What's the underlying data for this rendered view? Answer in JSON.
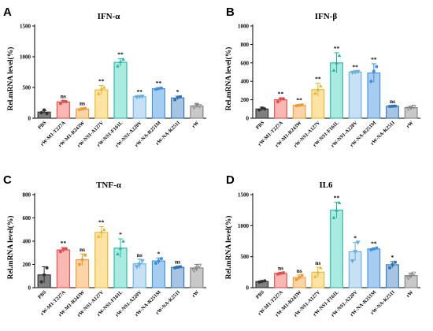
{
  "chart_data": [
    {
      "type": "bar",
      "panel_label": "A",
      "title": "IFN-α",
      "ylabel": "Rel.mRNA level(%)",
      "ylim": [
        0,
        1500
      ],
      "yticks": [
        0,
        500,
        1000,
        1500
      ],
      "categories": [
        "PBS",
        "rW-M1-T227A",
        "rW-M1-R243W",
        "rW-NS1-A127V",
        "rW-NS1-F161L",
        "rW-NS1-A220V",
        "rW-NA-R251M",
        "rW-NA-K251I",
        "rW"
      ],
      "values": [
        100,
        265,
        150,
        460,
        910,
        350,
        480,
        330,
        200
      ],
      "errors": [
        25,
        25,
        20,
        70,
        60,
        10,
        20,
        30,
        30
      ],
      "significance": [
        "",
        "ns",
        "ns",
        "**",
        "**",
        "**",
        "**",
        "*",
        ""
      ],
      "points": [
        [
          90,
          135,
          75
        ],
        [
          240,
          275,
          270
        ],
        [
          140,
          150,
          160
        ],
        [
          400,
          480,
          500
        ],
        [
          850,
          920,
          960
        ],
        [
          345,
          350,
          355
        ],
        [
          470,
          480,
          490
        ],
        [
          300,
          340,
          350
        ],
        [
          180,
          220,
          200
        ]
      ]
    },
    {
      "type": "bar",
      "panel_label": "B",
      "title": "IFN-β",
      "ylabel": "Rel.mRNA level(%)",
      "ylim": [
        0,
        1000
      ],
      "yticks": [
        0,
        200,
        400,
        600,
        800,
        1000
      ],
      "categories": [
        "PBS",
        "rW-M1-T227A",
        "rW-M1-R243W",
        "rW-NS1-A127V",
        "rW-NS1-F161L",
        "rW-NS1-A220V",
        "rW-NA-R251M",
        "rW-NA-K251I",
        "rW"
      ],
      "values": [
        100,
        200,
        140,
        310,
        600,
        500,
        490,
        130,
        115
      ],
      "errors": [
        20,
        20,
        10,
        70,
        110,
        10,
        100,
        5,
        15
      ],
      "significance": [
        "",
        "**",
        "**",
        "**",
        "**",
        "**",
        "**",
        "ns",
        ""
      ],
      "points": [
        [
          90,
          110,
          100
        ],
        [
          180,
          210,
          210
        ],
        [
          135,
          140,
          145
        ],
        [
          270,
          310,
          350
        ],
        [
          520,
          600,
          680
        ],
        [
          495,
          500,
          505
        ],
        [
          400,
          510,
          560
        ],
        [
          128,
          130,
          132
        ],
        [
          105,
          115,
          125
        ]
      ]
    },
    {
      "type": "bar",
      "panel_label": "C",
      "title": "TNF-α",
      "ylabel": "Rel.mRNA level(%)",
      "ylim": [
        0,
        800
      ],
      "yticks": [
        0,
        200,
        400,
        600,
        800
      ],
      "categories": [
        "PBS",
        "rW-M1-T227A",
        "rW-M1-R243W",
        "rW-NS1-A127V",
        "rW-NS1-F161L",
        "rW-NS1-A220V",
        "rW-NA-R251M",
        "rW-NA-K251I",
        "rW"
      ],
      "values": [
        110,
        325,
        240,
        475,
        340,
        205,
        230,
        175,
        170
      ],
      "errors": [
        70,
        20,
        50,
        50,
        80,
        40,
        25,
        10,
        30
      ],
      "significance": [
        "",
        "**",
        "ns",
        "**",
        "*",
        "ns",
        "*",
        "ns",
        ""
      ],
      "points": [
        [
          50,
          110,
          170
        ],
        [
          310,
          330,
          335
        ],
        [
          200,
          240,
          280
        ],
        [
          440,
          480,
          500
        ],
        [
          290,
          340,
          400
        ],
        [
          180,
          200,
          230
        ],
        [
          210,
          230,
          250
        ],
        [
          170,
          175,
          180
        ],
        [
          150,
          170,
          190
        ]
      ]
    },
    {
      "type": "bar",
      "panel_label": "D",
      "title": "IL6",
      "ylabel": "Rel.mRNA level(%)",
      "ylim": [
        0,
        1500
      ],
      "yticks": [
        0,
        500,
        1000,
        1500
      ],
      "categories": [
        "PBS",
        "rW-M1-T227A",
        "rW-M1-R243W",
        "rW-NS1-A127V",
        "rW-NS1-F161L",
        "rW-NS1-A220V",
        "rW-NA-R251M",
        "rW-NA-K251I",
        "rW"
      ],
      "values": [
        100,
        230,
        165,
        250,
        1250,
        580,
        625,
        370,
        195
      ],
      "errors": [
        15,
        20,
        40,
        80,
        130,
        150,
        15,
        50,
        40
      ],
      "significance": [
        "",
        "ns",
        "ns",
        "ns",
        "**",
        "*",
        "**",
        "*",
        ""
      ],
      "points": [
        [
          90,
          100,
          110
        ],
        [
          220,
          230,
          240
        ],
        [
          130,
          165,
          200
        ],
        [
          180,
          250,
          320
        ],
        [
          1130,
          1250,
          1370
        ],
        [
          430,
          580,
          730
        ],
        [
          610,
          625,
          640
        ],
        [
          320,
          370,
          410
        ],
        [
          160,
          195,
          230
        ]
      ]
    }
  ],
  "colors": {
    "fill": [
      "#7f7f7f",
      "#fbb7b1",
      "#fdd3a8",
      "#fde3a4",
      "#a9ebe0",
      "#c6e1f5",
      "#a6cdf0",
      "#a7c4e2",
      "#c8c8c8"
    ],
    "stroke": [
      "#303030",
      "#e04b4b",
      "#ee9b36",
      "#e8b52e",
      "#28b3a0",
      "#6aaede",
      "#3f8fde",
      "#2f72b5",
      "#808080"
    ]
  }
}
